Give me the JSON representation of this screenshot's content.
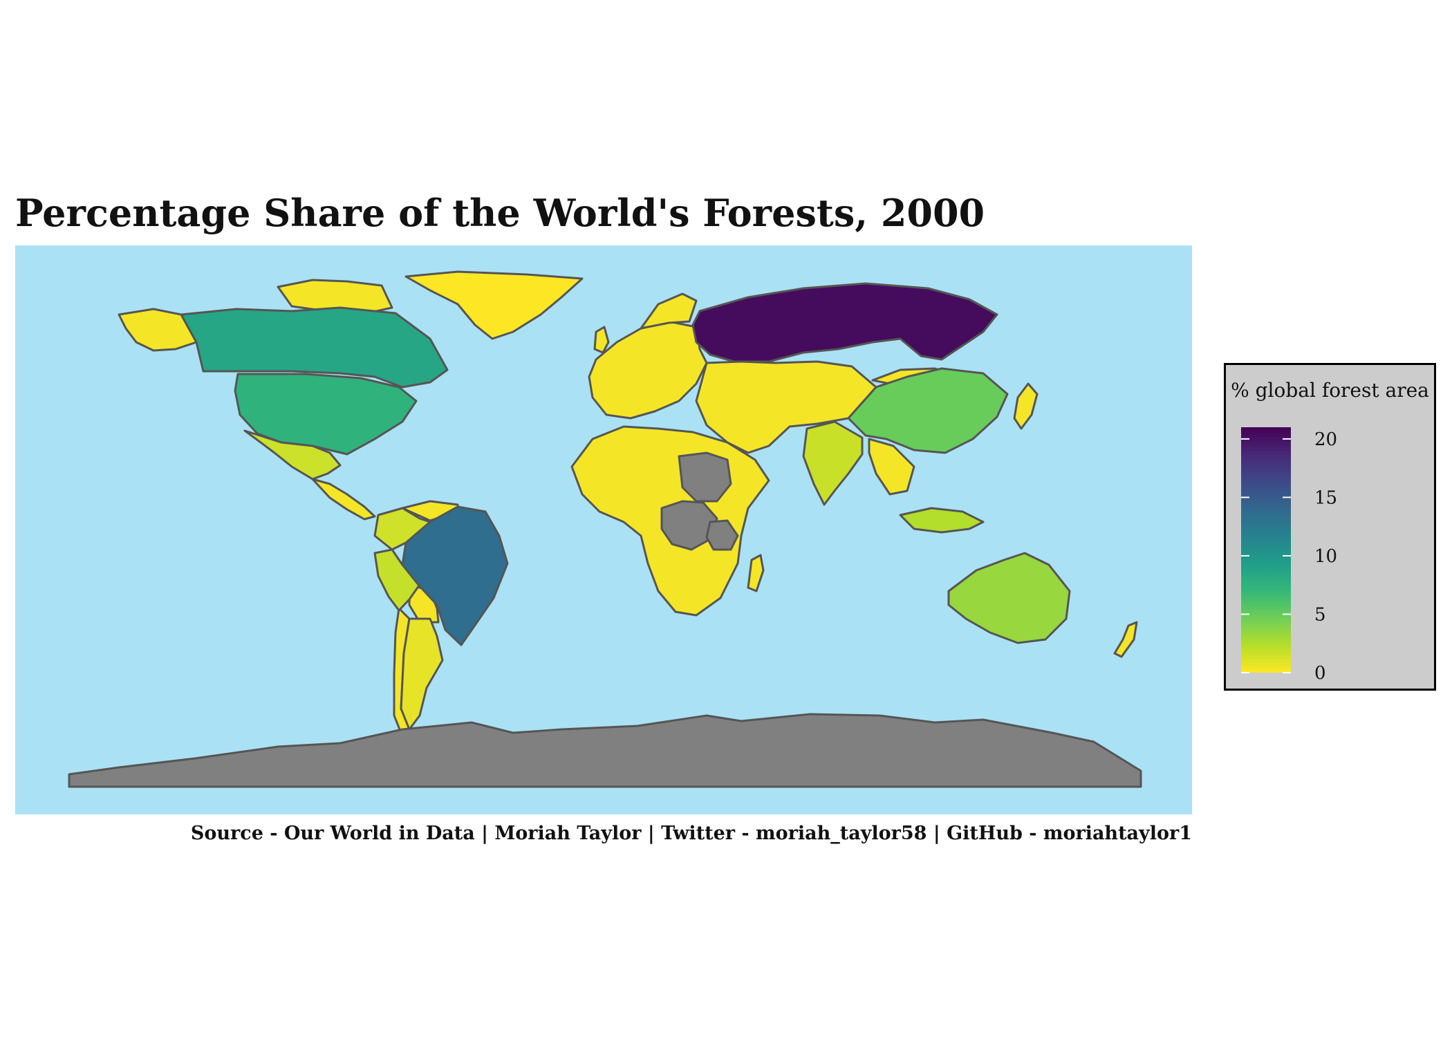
{
  "title": "Percentage Share of the World's Forests, 2000",
  "caption": "Source - Our World in Data  |  Moriah Taylor  |  Twitter - moriah_taylor58  |  GitHub - moriahtaylor1",
  "legend": {
    "title": "% global forest area",
    "ticks": [
      0,
      5,
      10,
      15,
      20
    ],
    "min": 0,
    "max": 21
  },
  "colors": {
    "ocean": "#abe1f4",
    "border": "#555555",
    "no_data": "#808080",
    "legend_bg": "#cccccc",
    "scale": [
      "#fde725",
      "#b5de2b",
      "#6ece58",
      "#35b779",
      "#1f9e89",
      "#26828e",
      "#31688e",
      "#3e4989",
      "#482878",
      "#440154"
    ]
  },
  "chart_data": {
    "type": "choropleth",
    "title": "Percentage Share of the World's Forests, 2000",
    "legend_title": "% global forest area",
    "value_range": [
      0,
      21
    ],
    "regions": [
      {
        "name": "Russia",
        "value": 20.4
      },
      {
        "name": "Brazil",
        "value": 13.5
      },
      {
        "name": "Canada",
        "value": 8.6
      },
      {
        "name": "United States",
        "value": 7.5
      },
      {
        "name": "Greenland",
        "value": 0
      },
      {
        "name": "China",
        "value": 4.9
      },
      {
        "name": "Australia",
        "value": 3.3
      },
      {
        "name": "India",
        "value": 1.7
      },
      {
        "name": "Mexico",
        "value": 1.6
      },
      {
        "name": "Peru",
        "value": 1.8
      },
      {
        "name": "Colombia",
        "value": 1.5
      },
      {
        "name": "Argentina",
        "value": 0.7
      },
      {
        "name": "Indonesia",
        "value": 2.4
      },
      {
        "name": "DR Congo",
        "value": null
      },
      {
        "name": "Sudan",
        "value": null
      },
      {
        "name": "Tanzania",
        "value": null
      },
      {
        "name": "Antarctica",
        "value": null
      }
    ]
  }
}
